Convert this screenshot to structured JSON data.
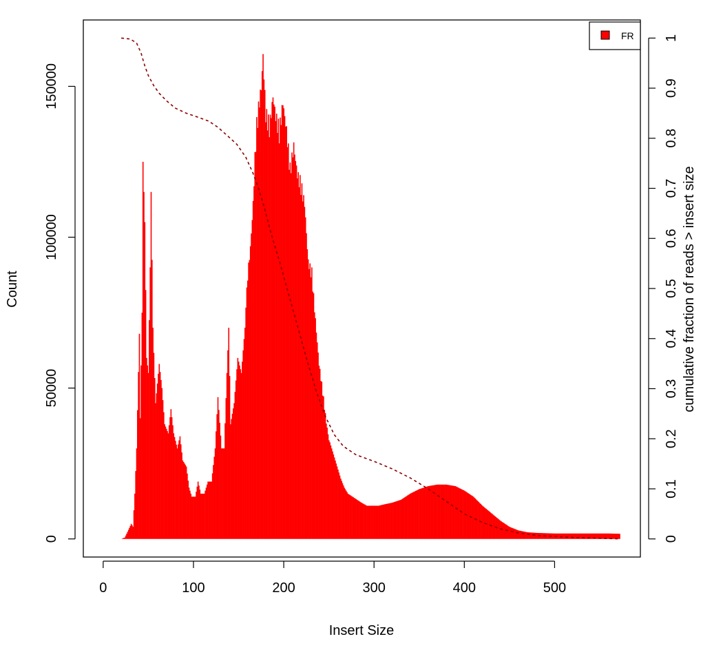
{
  "chart_data": {
    "type": "bar",
    "xlabel": "Insert Size",
    "ylabel": "Count",
    "y2label": "cumulative fraction of reads > insert size",
    "xlim": [
      -22,
      595
    ],
    "ylim": [
      -6000,
      172000
    ],
    "y2lim": [
      0,
      1
    ],
    "x_ticks": [
      0,
      100,
      200,
      300,
      400,
      500
    ],
    "y_ticks": [
      0,
      50000,
      100000,
      150000
    ],
    "y2_ticks": [
      0,
      0.1,
      0.2,
      0.3,
      0.4,
      0.5,
      0.6,
      0.7,
      0.8,
      0.9,
      1
    ],
    "legend": {
      "position": "top-right",
      "entries": [
        {
          "label": "FR",
          "color": "#ff0000"
        }
      ]
    },
    "grid": false,
    "colors": {
      "bars": "#ff0000",
      "cumulative": "#8b0000"
    },
    "histogram_points": [
      [
        20,
        0
      ],
      [
        24,
        500
      ],
      [
        28,
        3000
      ],
      [
        31,
        5000
      ],
      [
        33,
        4000
      ],
      [
        35,
        15000
      ],
      [
        37,
        30000
      ],
      [
        40,
        68000
      ],
      [
        41,
        40000
      ],
      [
        43,
        75000
      ],
      [
        44,
        125000
      ],
      [
        46,
        105000
      ],
      [
        48,
        60000
      ],
      [
        50,
        55000
      ],
      [
        52,
        90000
      ],
      [
        53,
        115000
      ],
      [
        55,
        70000
      ],
      [
        58,
        45000
      ],
      [
        62,
        58000
      ],
      [
        65,
        50000
      ],
      [
        68,
        38000
      ],
      [
        72,
        35000
      ],
      [
        75,
        43000
      ],
      [
        78,
        35000
      ],
      [
        82,
        30000
      ],
      [
        85,
        34000
      ],
      [
        88,
        26000
      ],
      [
        92,
        24000
      ],
      [
        95,
        17000
      ],
      [
        98,
        14000
      ],
      [
        102,
        14000
      ],
      [
        105,
        19000
      ],
      [
        108,
        15000
      ],
      [
        112,
        15000
      ],
      [
        116,
        19000
      ],
      [
        120,
        19000
      ],
      [
        124,
        30000
      ],
      [
        127,
        47000
      ],
      [
        131,
        30000
      ],
      [
        134,
        30000
      ],
      [
        137,
        55000
      ],
      [
        139,
        70000
      ],
      [
        141,
        38000
      ],
      [
        145,
        45000
      ],
      [
        149,
        60000
      ],
      [
        153,
        55000
      ],
      [
        157,
        70000
      ],
      [
        160,
        90000
      ],
      [
        163,
        100000
      ],
      [
        166,
        115000
      ],
      [
        168,
        130000
      ],
      [
        170,
        140000
      ],
      [
        173,
        150000
      ],
      [
        175,
        155000
      ],
      [
        177,
        166000
      ],
      [
        180,
        145000
      ],
      [
        184,
        140000
      ],
      [
        188,
        152000
      ],
      [
        191,
        145000
      ],
      [
        195,
        138000
      ],
      [
        199,
        150000
      ],
      [
        203,
        140000
      ],
      [
        207,
        125000
      ],
      [
        211,
        135000
      ],
      [
        215,
        125000
      ],
      [
        219,
        120000
      ],
      [
        223,
        115000
      ],
      [
        227,
        95000
      ],
      [
        231,
        90000
      ],
      [
        235,
        75000
      ],
      [
        239,
        60000
      ],
      [
        243,
        50000
      ],
      [
        247,
        40000
      ],
      [
        251,
        32000
      ],
      [
        255,
        28000
      ],
      [
        259,
        24000
      ],
      [
        263,
        20000
      ],
      [
        267,
        17000
      ],
      [
        271,
        15000
      ],
      [
        276,
        14000
      ],
      [
        281,
        13000
      ],
      [
        286,
        12000
      ],
      [
        292,
        11000
      ],
      [
        298,
        11000
      ],
      [
        305,
        11000
      ],
      [
        312,
        11500
      ],
      [
        320,
        12000
      ],
      [
        330,
        13000
      ],
      [
        340,
        15000
      ],
      [
        350,
        16500
      ],
      [
        360,
        17500
      ],
      [
        370,
        18000
      ],
      [
        380,
        18000
      ],
      [
        390,
        17500
      ],
      [
        400,
        16000
      ],
      [
        410,
        14000
      ],
      [
        420,
        11000
      ],
      [
        430,
        8500
      ],
      [
        440,
        6000
      ],
      [
        450,
        4000
      ],
      [
        460,
        2800
      ],
      [
        470,
        2200
      ],
      [
        480,
        2000
      ],
      [
        500,
        1800
      ],
      [
        520,
        1800
      ],
      [
        540,
        1800
      ],
      [
        560,
        1800
      ],
      [
        572,
        1700
      ]
    ],
    "cumulative_points": [
      [
        20,
        1.0
      ],
      [
        30,
        0.998
      ],
      [
        37,
        0.99
      ],
      [
        42,
        0.97
      ],
      [
        46,
        0.945
      ],
      [
        50,
        0.925
      ],
      [
        56,
        0.905
      ],
      [
        62,
        0.89
      ],
      [
        70,
        0.875
      ],
      [
        80,
        0.86
      ],
      [
        92,
        0.85
      ],
      [
        105,
        0.842
      ],
      [
        117,
        0.834
      ],
      [
        127,
        0.822
      ],
      [
        137,
        0.806
      ],
      [
        148,
        0.788
      ],
      [
        158,
        0.762
      ],
      [
        166,
        0.73
      ],
      [
        172,
        0.7
      ],
      [
        178,
        0.665
      ],
      [
        186,
        0.61
      ],
      [
        196,
        0.55
      ],
      [
        206,
        0.485
      ],
      [
        216,
        0.42
      ],
      [
        226,
        0.355
      ],
      [
        236,
        0.295
      ],
      [
        246,
        0.245
      ],
      [
        256,
        0.208
      ],
      [
        266,
        0.185
      ],
      [
        280,
        0.168
      ],
      [
        300,
        0.155
      ],
      [
        320,
        0.14
      ],
      [
        340,
        0.122
      ],
      [
        360,
        0.1
      ],
      [
        380,
        0.075
      ],
      [
        400,
        0.05
      ],
      [
        420,
        0.033
      ],
      [
        440,
        0.02
      ],
      [
        460,
        0.012
      ],
      [
        480,
        0.007
      ],
      [
        520,
        0.003
      ],
      [
        572,
        0.0
      ]
    ]
  }
}
